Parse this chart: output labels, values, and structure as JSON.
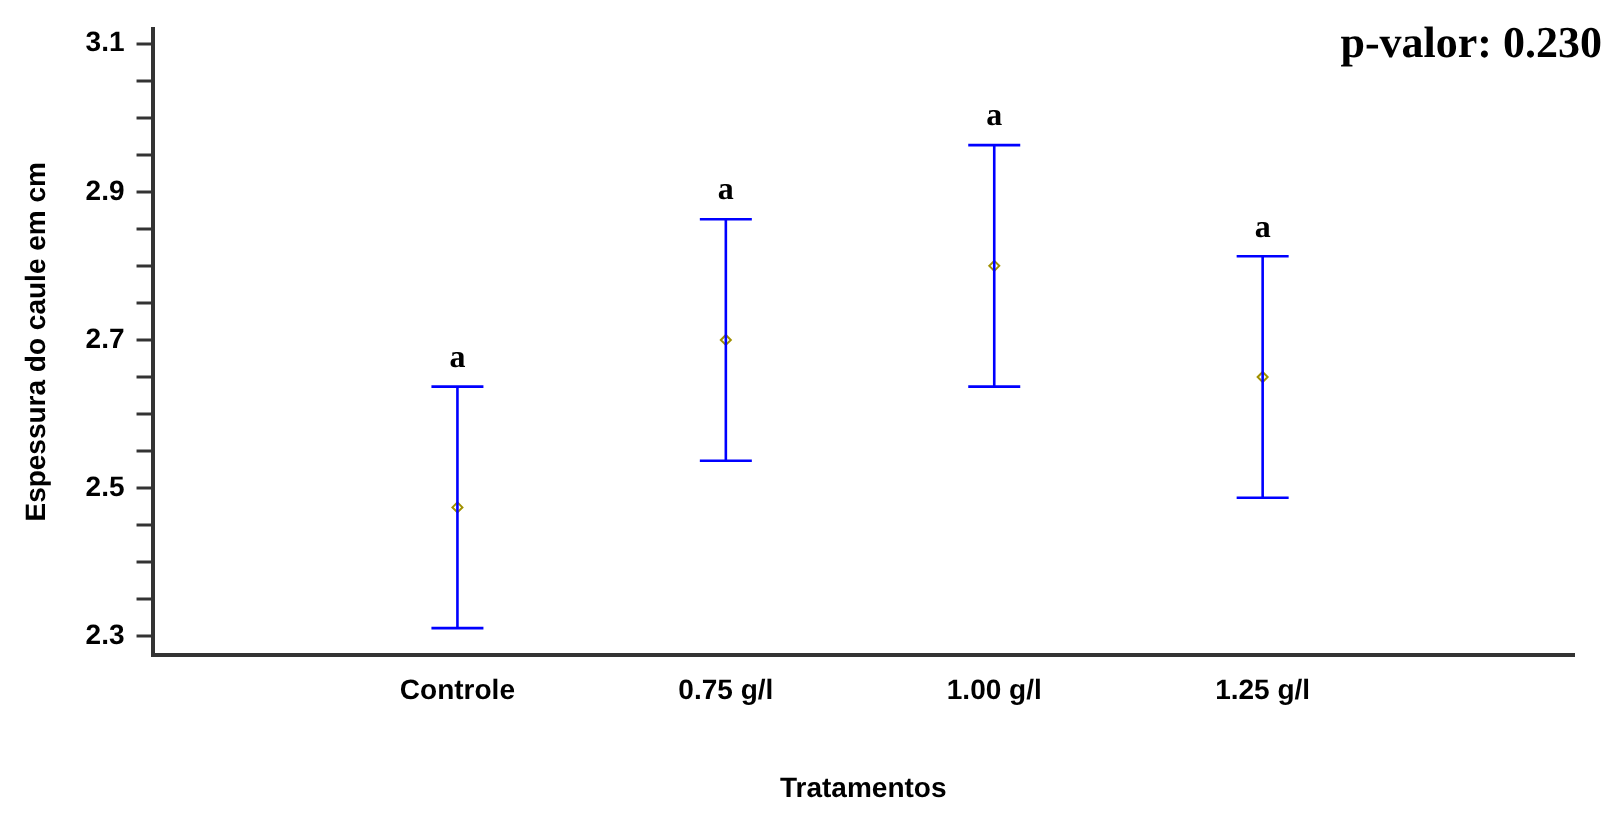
{
  "chart_data": {
    "type": "scatter",
    "xlabel": "Tratamentos",
    "ylabel": "Espessura do caule em cm",
    "categories": [
      "Controle",
      "0.75 g/l",
      "1.00 g/l",
      "1.25 g/l"
    ],
    "series": [
      {
        "color": "#a09000",
        "values": [
          2.474,
          2.7,
          2.8,
          2.65
        ],
        "errors": [
          0.163,
          0.163,
          0.163,
          0.163
        ]
      }
    ],
    "marker": "diamond",
    "grid": false,
    "legend": false,
    "ylim": [
      2.275,
      3.12
    ],
    "yticks": [
      2.3,
      {
        "value": 2.35,
        "label": null
      },
      {
        "value": 2.4,
        "label": null
      },
      {
        "value": 2.45,
        "label": null
      },
      2.5,
      {
        "value": 2.55,
        "label": null
      },
      {
        "value": 2.6,
        "label": null
      },
      {
        "value": 2.65,
        "label": null
      },
      2.7,
      {
        "value": 2.75,
        "label": null
      },
      {
        "value": 2.8,
        "label": null
      },
      {
        "value": 2.85,
        "label": null
      },
      2.9,
      {
        "value": 2.95,
        "label": null
      },
      {
        "value": 3.0,
        "label": null
      },
      {
        "value": 3.05,
        "label": null
      },
      3.1
    ],
    "annotations": [
      {
        "text": "a",
        "x": "Controle",
        "y": 2.637
      },
      {
        "text": "a",
        "x": "0.75 g/l",
        "y": 2.863
      },
      {
        "text": "a",
        "x": "1.00 g/l",
        "y": 2.963
      },
      {
        "text": "a",
        "x": "1.25 g/l",
        "y": 2.813
      },
      "p-valor: 0.230"
    ]
  }
}
